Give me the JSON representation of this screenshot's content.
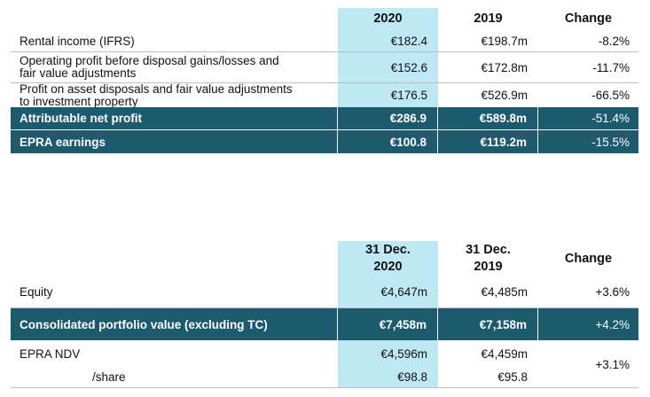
{
  "table1": {
    "headers": [
      "2020",
      "2019",
      "Change"
    ],
    "rows": [
      {
        "label": "Rental income (IFRS)",
        "a": "€182.4",
        "b": "€198.7m",
        "c": "-8.2%"
      },
      {
        "label_line1": "Operating profit before disposal gains/losses and",
        "label_line2": "fair value adjustments",
        "a": "€152.6",
        "b": "€172.8m",
        "c": "-11.7%"
      },
      {
        "label_line1": "Profit on asset disposals and fair value adjustments",
        "label_line2": "to investment property",
        "a": "€176.5",
        "b": "€526.9m",
        "c": "-66.5%"
      },
      {
        "label": "Attributable net profit",
        "a": "€286.9",
        "b": "€589.8m",
        "c": "-51.4%"
      },
      {
        "label": "EPRA earnings",
        "a": "€100.8",
        "b": "€119.2m",
        "c": "-15.5%"
      }
    ]
  },
  "table2": {
    "headers": [
      {
        "line1": "31 Dec.",
        "line2": "2020"
      },
      {
        "line1": "31 Dec.",
        "line2": "2019"
      },
      {
        "line1": "Change"
      }
    ],
    "rows": [
      {
        "label": "Equity",
        "a": "€4,647m",
        "b": "€4,485m",
        "c": "+3.6%"
      },
      {
        "label": "Consolidated portfolio value (excluding TC)",
        "a": "€7,458m",
        "b": "€7,158m",
        "c": "+4.2%"
      },
      {
        "label": "EPRA NDV",
        "a": "€4,596m",
        "b": "€4,459m",
        "c": "+3.1%"
      },
      {
        "label": "/share",
        "a": "€98.8",
        "b": "€95.8"
      }
    ]
  }
}
